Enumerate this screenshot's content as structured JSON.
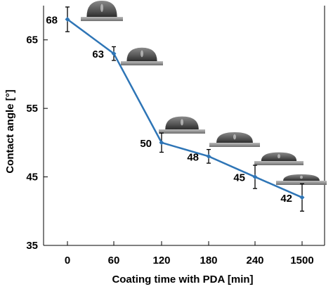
{
  "chart_data": {
    "type": "line",
    "xlabel": "Coating time with PDA [min]",
    "ylabel": "Contact angle [°]",
    "categories": [
      "0",
      "60",
      "120",
      "180",
      "240",
      "1500"
    ],
    "series": [
      {
        "values": [
          68,
          63,
          50,
          48,
          45,
          42
        ],
        "errors": [
          1.8,
          1.0,
          1.4,
          1.0,
          1.7,
          2.0
        ],
        "data_labels": [
          "68",
          "63",
          "50",
          "48",
          "45",
          "42"
        ],
        "color": "#2e75b6"
      }
    ],
    "ylim": [
      35,
      70
    ],
    "yticks": [
      "35",
      "45",
      "55",
      "65"
    ],
    "grid": false,
    "legend": "none",
    "annotations": "droplet-photo-insets"
  }
}
